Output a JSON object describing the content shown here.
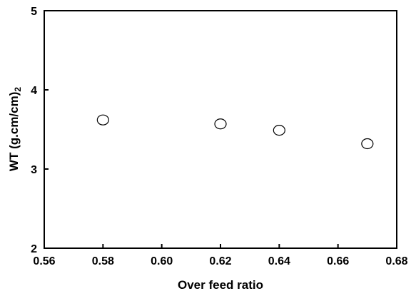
{
  "chart_data": {
    "type": "scatter",
    "xlabel": "Over feed ratio",
    "ylabel": "WT (g.cm/cm)",
    "ylabel_suffix": "2",
    "xlim": [
      0.56,
      0.68
    ],
    "ylim": [
      2,
      5
    ],
    "xticks": [
      "0.56",
      "0.58",
      "0.60",
      "0.62",
      "0.64",
      "0.66",
      "0.68"
    ],
    "yticks": [
      "2",
      "3",
      "4",
      "5"
    ],
    "grid": false,
    "legend": "none",
    "marker": "open-circle",
    "series": [
      {
        "x": [
          0.58,
          0.62,
          0.64,
          0.67
        ],
        "y": [
          3.62,
          3.57,
          3.49,
          3.32
        ]
      }
    ]
  }
}
